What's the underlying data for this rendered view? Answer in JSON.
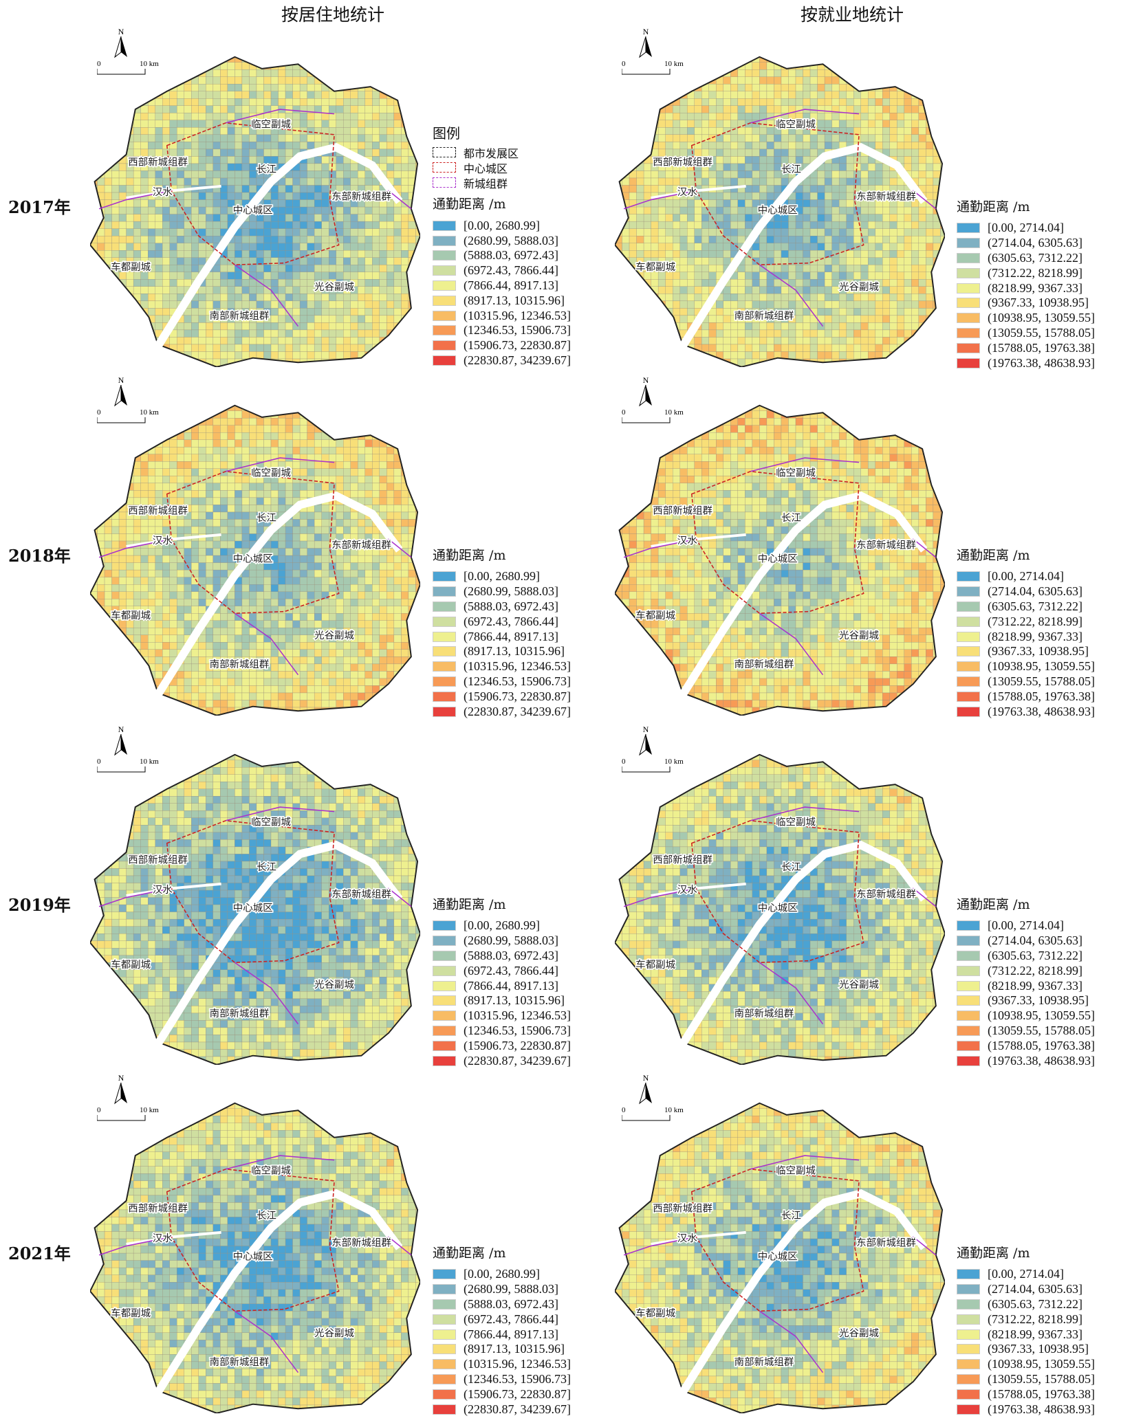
{
  "columns": [
    "按居住地统计",
    "按就业地统计"
  ],
  "years": [
    "2017年",
    "2018年",
    "2019年",
    "2021年"
  ],
  "scale": {
    "zero": "0",
    "ten": "10 km",
    "north": "N"
  },
  "boundary_legend": {
    "title": "图例",
    "items": [
      {
        "label": "都市发展区",
        "color": "#222222"
      },
      {
        "label": "中心城区",
        "color": "#cc2222"
      },
      {
        "label": "新城组群",
        "color": "#aa33cc"
      }
    ]
  },
  "legend_title": "通勤距离 /m",
  "colors": [
    "#4ba3d3",
    "#7fb0c2",
    "#a6c9b0",
    "#cfdfa0",
    "#eef08f",
    "#f8df78",
    "#f8bc64",
    "#f79a56",
    "#f2714a",
    "#e8403c"
  ],
  "legend_residence": [
    "[0.00, 2680.99]",
    "(2680.99, 5888.03]",
    "(5888.03, 6972.43]",
    "(6972.43, 7866.44]",
    "(7866.44, 8917.13]",
    "(8917.13, 10315.96]",
    "(10315.96, 12346.53]",
    "(12346.53, 15906.73]",
    "(15906.73, 22830.87]",
    "(22830.87, 34239.67]"
  ],
  "legend_workplace": [
    "[0.00, 2714.04]",
    "(2714.04, 6305.63]",
    "(6305.63, 7312.22]",
    "(7312.22, 8218.99]",
    "(8218.99, 9367.33]",
    "(9367.33, 10938.95]",
    "(10938.95, 13059.55]",
    "(13059.55, 15788.05]",
    "(15788.05, 19763.38]",
    "(19763.38, 48638.93]"
  ],
  "map_labels": [
    "临空副城",
    "西部新城组群",
    "长江",
    "汉水",
    "中心城区",
    "东部新城组群",
    "车都副城",
    "光谷副城",
    "南部新城组群"
  ]
}
